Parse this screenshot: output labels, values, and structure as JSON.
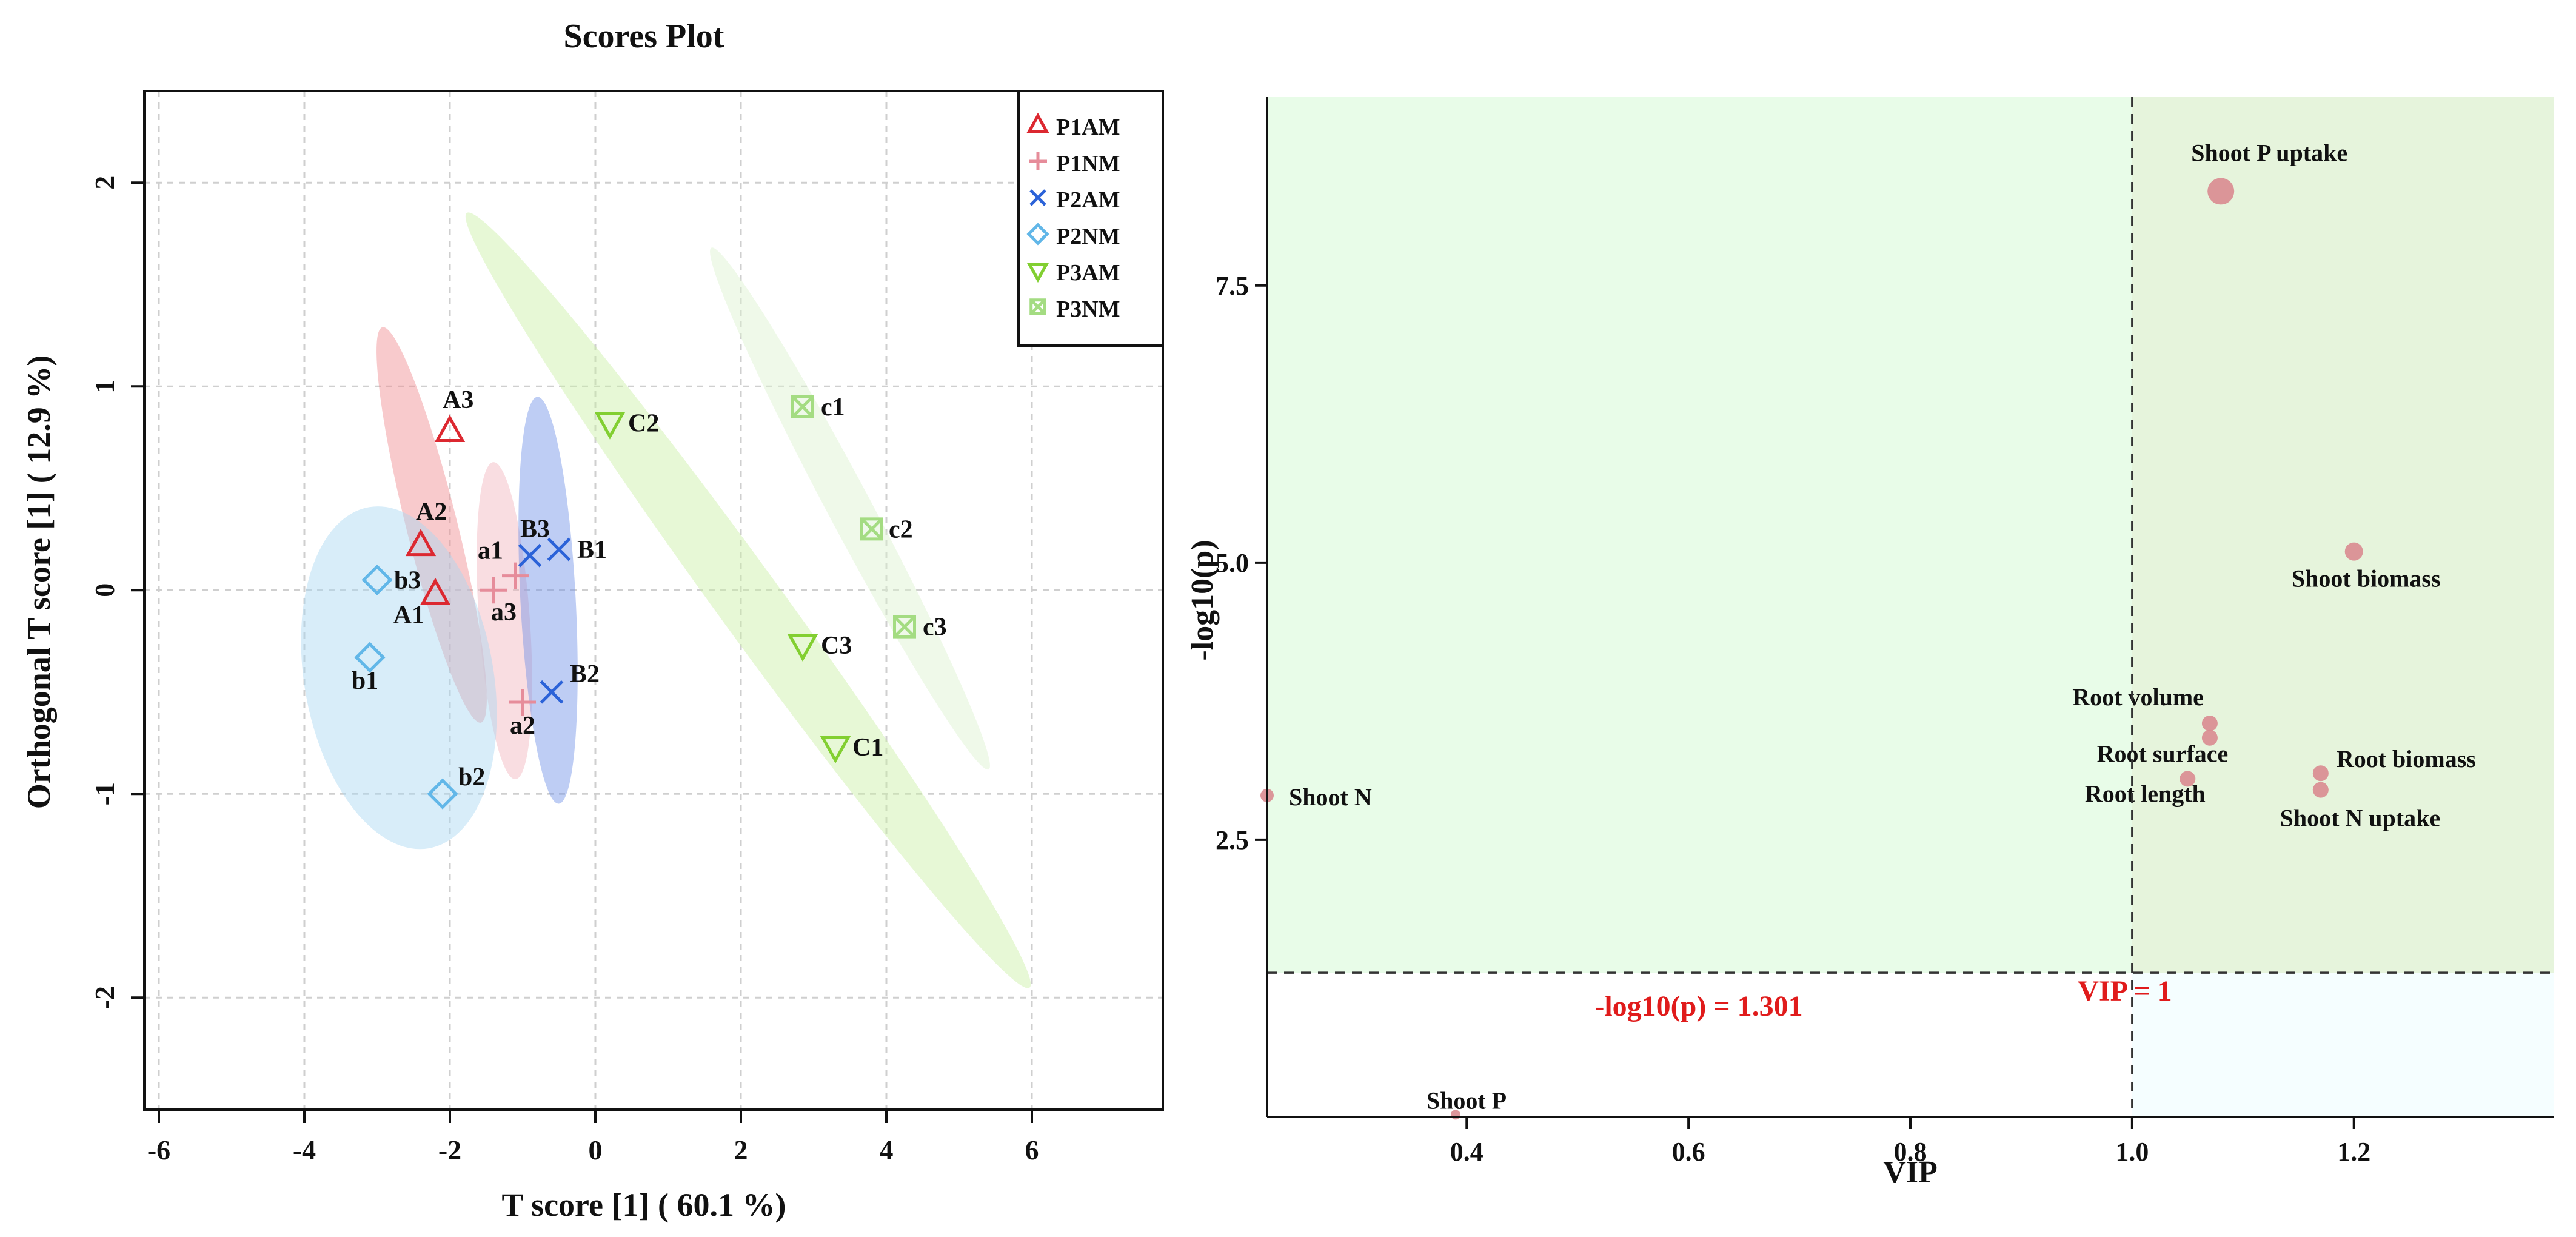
{
  "chart_data": [
    {
      "type": "scatter",
      "title": "Scores Plot",
      "xlabel": "T score [1] ( 60.1 %)",
      "ylabel": "Orthogonal T score [1] ( 12.9 %)",
      "xlim": [
        -6.2,
        7.8
      ],
      "ylim": [
        -2.55,
        2.45
      ],
      "xticks": [
        "-6",
        "-4",
        "-2",
        "0",
        "2",
        "4",
        "6"
      ],
      "yticks": [
        "-2",
        "-1",
        "0",
        "1",
        "2"
      ],
      "grid": true,
      "legend_position": "top-right",
      "series": [
        {
          "name": "P1AM",
          "marker": "triangle-up",
          "color": "#dc2830",
          "fill": "#f08a8f",
          "points": [
            {
              "label": "A1",
              "x": -2.2,
              "y": -0.02
            },
            {
              "label": "A2",
              "x": -2.4,
              "y": 0.22
            },
            {
              "label": "A3",
              "x": -2.0,
              "y": 0.78
            }
          ],
          "ellipse": {
            "cx": -2.25,
            "cy": 0.32,
            "rx": 0.35,
            "ry": 1.0,
            "rotation": -14
          }
        },
        {
          "name": "P1NM",
          "marker": "plus",
          "color": "#e68c9a",
          "fill": "#f2b4bd",
          "points": [
            {
              "label": "a1",
              "x": -1.1,
              "y": 0.07
            },
            {
              "label": "a2",
              "x": -1.0,
              "y": -0.55
            },
            {
              "label": "a3",
              "x": -1.4,
              "y": 0.0
            }
          ],
          "ellipse": {
            "cx": -1.25,
            "cy": -0.15,
            "rx": 0.35,
            "ry": 0.78,
            "rotation": -4
          }
        },
        {
          "name": "P2AM",
          "marker": "x",
          "color": "#2b62d8",
          "fill": "#6f90e6",
          "points": [
            {
              "label": "B1",
              "x": -0.5,
              "y": 0.2
            },
            {
              "label": "B2",
              "x": -0.6,
              "y": -0.5
            },
            {
              "label": "B3",
              "x": -0.9,
              "y": 0.17
            }
          ],
          "ellipse": {
            "cx": -0.65,
            "cy": -0.05,
            "rx": 0.38,
            "ry": 1.0,
            "rotation": -3
          }
        },
        {
          "name": "P2NM",
          "marker": "diamond",
          "color": "#62b7e8",
          "fill": "#a9d6f2",
          "points": [
            {
              "label": "b1",
              "x": -3.1,
              "y": -0.33
            },
            {
              "label": "b2",
              "x": -2.1,
              "y": -1.0
            },
            {
              "label": "b3",
              "x": -3.0,
              "y": 0.05
            }
          ],
          "ellipse": {
            "cx": -2.7,
            "cy": -0.43,
            "rx": 1.3,
            "ry": 0.85,
            "rotation": -10
          }
        },
        {
          "name": "P3AM",
          "marker": "triangle-down",
          "color": "#82cf31",
          "fill": "#c9f0a4",
          "points": [
            {
              "label": "C1",
              "x": 3.3,
              "y": -0.77
            },
            {
              "label": "C2",
              "x": 0.2,
              "y": 0.82
            },
            {
              "label": "C3",
              "x": 2.85,
              "y": -0.27
            }
          ],
          "ellipse": {
            "cx": 2.1,
            "cy": -0.05,
            "rx": 0.45,
            "ry": 2.35,
            "rotation": -36
          }
        },
        {
          "name": "P3NM",
          "marker": "square-x",
          "color": "#a4dc82",
          "fill": "#dcf2cf",
          "points": [
            {
              "label": "c1",
              "x": 2.85,
              "y": 0.9
            },
            {
              "label": "c2",
              "x": 3.8,
              "y": 0.3
            },
            {
              "label": "c3",
              "x": 4.25,
              "y": -0.18
            }
          ],
          "ellipse": {
            "cx": 3.5,
            "cy": 0.4,
            "rx": 0.3,
            "ry": 1.45,
            "rotation": -28
          }
        }
      ]
    },
    {
      "type": "scatter",
      "title": "",
      "xlabel": "VIP",
      "ylabel": "-log10(p)",
      "xlim": [
        0.22,
        1.38
      ],
      "ylim": [
        0.0,
        9.2
      ],
      "xticks": [
        "0.4",
        "0.6",
        "0.8",
        "1.0",
        "1.2"
      ],
      "yticks": [
        "2.5",
        "5.0",
        "7.5"
      ],
      "grid": false,
      "threshold_x": 1.0,
      "threshold_y": 1.301,
      "threshold_x_label": "VIP = 1",
      "threshold_y_label": "-log10(p) = 1.301",
      "threshold_color": "#e01b1b",
      "region_colors": {
        "upper": "#e8fce8",
        "upper_right": "#e6f4dc",
        "lower_right": "#f5feff"
      },
      "point_color": "#d98b90",
      "points": [
        {
          "label": "Shoot P uptake",
          "x": 1.08,
          "y": 8.35,
          "size": 22
        },
        {
          "label": "Shoot biomass",
          "x": 1.2,
          "y": 5.1,
          "size": 15
        },
        {
          "label": "Root volume",
          "x": 1.07,
          "y": 3.55,
          "size": 13
        },
        {
          "label": "Root surface",
          "x": 1.07,
          "y": 3.42,
          "size": 13
        },
        {
          "label": "Root biomass",
          "x": 1.17,
          "y": 3.1,
          "size": 13
        },
        {
          "label": "Root length",
          "x": 1.05,
          "y": 3.05,
          "size": 13
        },
        {
          "label": "Shoot N uptake",
          "x": 1.17,
          "y": 2.95,
          "size": 13
        },
        {
          "label": "Shoot N",
          "x": 0.22,
          "y": 2.9,
          "size": 11
        },
        {
          "label": "Shoot P",
          "x": 0.39,
          "y": 0.02,
          "size": 8
        }
      ]
    }
  ]
}
